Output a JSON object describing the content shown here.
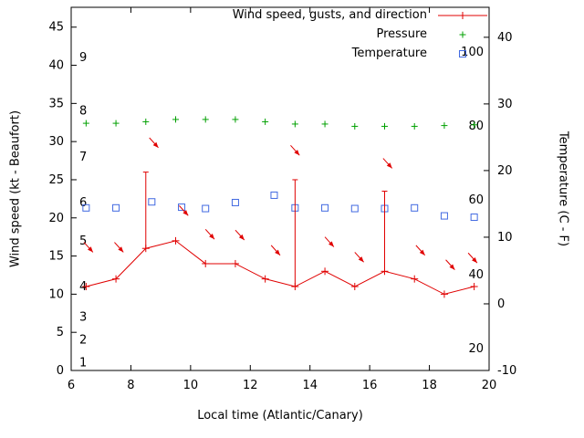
{
  "chart_data": {
    "type": "line",
    "title": "",
    "xlabel": "Local time (Atlantic/Canary)",
    "ylabel_left": "Wind speed (kt - Beaufort)",
    "ylabel_right": "Temperature (C - F)",
    "x_range": [
      6,
      20
    ],
    "y_left_range": [
      0,
      47.6
    ],
    "y_right_range": [
      -10,
      44.5
    ],
    "x_ticks": [
      6,
      8,
      10,
      12,
      14,
      16,
      18,
      20
    ],
    "y_left_ticks": [
      0,
      5,
      10,
      15,
      20,
      25,
      30,
      35,
      40,
      45
    ],
    "y_right_ticks": [
      -10,
      0,
      10,
      20,
      30,
      40
    ],
    "grid": false,
    "legend_position": "top-right-inside",
    "beaufort_labels": [
      {
        "label": "1",
        "kt": 1
      },
      {
        "label": "2",
        "kt": 4
      },
      {
        "label": "3",
        "kt": 7
      },
      {
        "label": "4",
        "kt": 11
      },
      {
        "label": "5",
        "kt": 17
      },
      {
        "label": "6",
        "kt": 22
      },
      {
        "label": "7",
        "kt": 28
      },
      {
        "label": "8",
        "kt": 34
      },
      {
        "label": "9",
        "kt": 41
      }
    ],
    "fahrenheit_labels": [
      {
        "label": "20",
        "c": -6.7
      },
      {
        "label": "40",
        "c": 4.4
      },
      {
        "label": "60",
        "c": 15.6
      },
      {
        "label": "80",
        "c": 26.7
      },
      {
        "label": "100",
        "c": 37.8
      }
    ],
    "series": [
      {
        "name": "Wind speed, gusts, and direction",
        "type": "line-errorbars-vectors",
        "color": "#e00000",
        "axis": "left",
        "x": [
          6.5,
          7.5,
          8.5,
          9.5,
          10.5,
          11.5,
          12.5,
          13.5,
          14.5,
          15.5,
          16.5,
          17.5,
          18.5,
          19.5
        ],
        "values": [
          11,
          12,
          16,
          17,
          14,
          14,
          12,
          11,
          13,
          11,
          13,
          12,
          10,
          11
        ],
        "gusts": [
          null,
          null,
          26,
          null,
          null,
          null,
          null,
          25,
          null,
          null,
          23.5,
          null,
          null,
          null
        ],
        "arrow_dx": 0.3,
        "arrow_dy": -1.3,
        "arrows": [
          {
            "x": 6.43,
            "y": 16.8
          },
          {
            "x": 7.45,
            "y": 16.8
          },
          {
            "x": 8.62,
            "y": 30.5
          },
          {
            "x": 9.62,
            "y": 21.6
          },
          {
            "x": 10.5,
            "y": 18.5
          },
          {
            "x": 11.5,
            "y": 18.4
          },
          {
            "x": 12.7,
            "y": 16.4
          },
          {
            "x": 13.35,
            "y": 29.5
          },
          {
            "x": 14.5,
            "y": 17.5
          },
          {
            "x": 15.5,
            "y": 15.5
          },
          {
            "x": 16.45,
            "y": 27.8
          },
          {
            "x": 17.55,
            "y": 16.4
          },
          {
            "x": 18.55,
            "y": 14.5
          },
          {
            "x": 19.3,
            "y": 15.4
          }
        ]
      },
      {
        "name": "Pressure",
        "type": "points-plus",
        "color": "#00a000",
        "axis": "left",
        "x": [
          6.5,
          7.5,
          8.5,
          9.5,
          10.5,
          11.5,
          12.5,
          13.5,
          14.5,
          15.5,
          16.5,
          17.5,
          18.5,
          19.5
        ],
        "values": [
          32.4,
          32.4,
          32.6,
          32.9,
          32.9,
          32.9,
          32.6,
          32.3,
          32.3,
          32.0,
          32.0,
          32.0,
          32.1,
          32.2
        ]
      },
      {
        "name": "Temperature",
        "type": "points-square",
        "color": "#4169e1",
        "axis": "right",
        "x": [
          6.5,
          7.5,
          8.7,
          9.7,
          10.5,
          11.5,
          12.8,
          13.5,
          14.5,
          15.5,
          16.5,
          17.5,
          18.5,
          19.5
        ],
        "values_c": [
          14.4,
          14.4,
          15.3,
          14.5,
          14.3,
          15.2,
          16.3,
          14.4,
          14.4,
          14.3,
          14.3,
          14.4,
          13.2,
          13.0
        ]
      }
    ]
  }
}
